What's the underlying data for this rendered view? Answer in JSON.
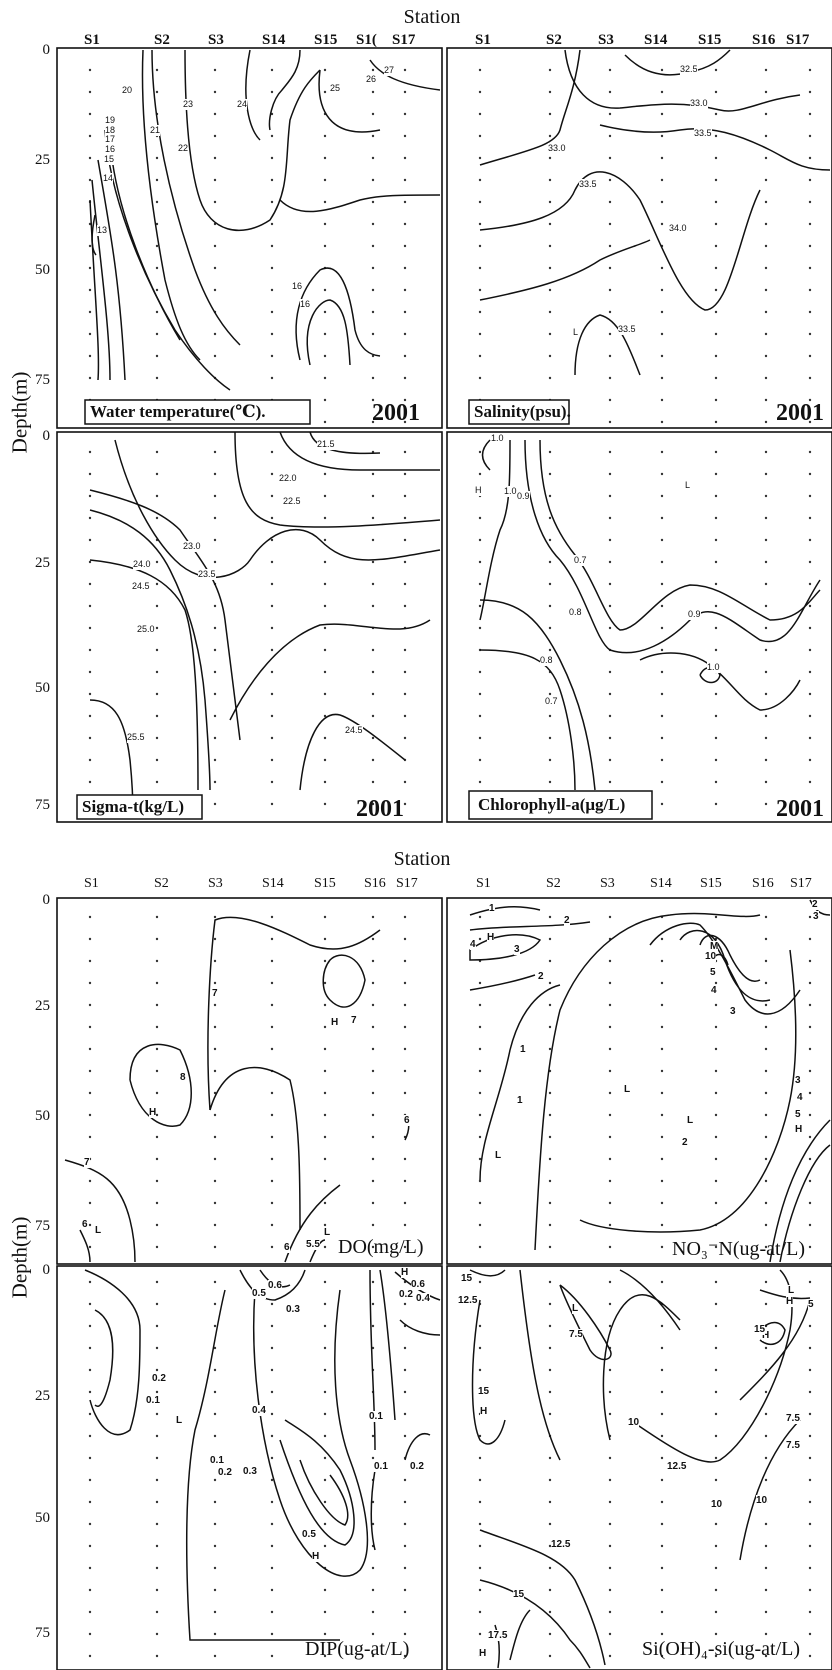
{
  "figure": {
    "top_group_title": "Station",
    "bottom_group_title": "Station",
    "ylabel": "Depth(m)",
    "top_yticks": [
      "0",
      "25",
      "50",
      "75"
    ],
    "top_yticks_lower": [
      "0",
      "25",
      "50",
      "75"
    ],
    "bottom_yticks": [
      "0",
      "25",
      "50",
      "75"
    ],
    "bottom_yticks_lower": [
      "0",
      "25",
      "50",
      "75"
    ],
    "top_stations": [
      "S1",
      "S2",
      "S3",
      "S14",
      "S15",
      "S1(",
      "S17"
    ],
    "top_stations_right": [
      "S1",
      "S2",
      "S3",
      "S14",
      "S15",
      "S16",
      "S17"
    ],
    "bottom_stations": [
      "S1",
      "S2",
      "S3",
      "S14",
      "S15",
      "S16",
      "S17"
    ],
    "bottom_stations_right": [
      "S1",
      "S2",
      "S3",
      "S14",
      "S15",
      "S16",
      "S17"
    ]
  },
  "chart_data": [
    {
      "type": "contour",
      "panel": "Water temperature",
      "title": "Water temperature(℃).",
      "year": "2001",
      "xlabel": "Station",
      "ylabel": "Depth(m)",
      "ylim": [
        0,
        80
      ],
      "contour_labels": [
        "20",
        "23",
        "24",
        "25",
        "26",
        "27",
        "19",
        "18",
        "17",
        "16",
        "15",
        "14",
        "13",
        "21",
        "22",
        "16",
        "16"
      ]
    },
    {
      "type": "contour",
      "panel": "Salinity",
      "title": "Salinity(psu).",
      "year": "2001",
      "xlabel": "Station",
      "ylabel": "Depth(m)",
      "ylim": [
        0,
        80
      ],
      "contour_labels": [
        "32.5",
        "33.0",
        "33.5",
        "33.0",
        "33.5",
        "34.0",
        "33.5",
        "L"
      ]
    },
    {
      "type": "contour",
      "panel": "Sigma-t",
      "title": "Sigma-t(kg/L)",
      "year": "2001",
      "xlabel": "Station",
      "ylabel": "Depth(m)",
      "ylim": [
        0,
        80
      ],
      "contour_labels": [
        "21.5",
        "22.0",
        "22.5",
        "23.0",
        "23.5",
        "24.0",
        "24.5",
        "25.0",
        "25.5",
        "24.5"
      ]
    },
    {
      "type": "contour",
      "panel": "Chlorophyll-a",
      "title": "Chlorophyll-a(μg/L)",
      "year": "2001",
      "xlabel": "Station",
      "ylabel": "Depth(m)",
      "ylim": [
        0,
        80
      ],
      "contour_labels": [
        "1.0",
        "1.0",
        "0.9",
        "0.7",
        "0.8",
        "0.8",
        "0.9",
        "1.0",
        "0.7",
        "H",
        "L"
      ]
    },
    {
      "type": "contour",
      "panel": "DO",
      "title": "DO(mg/L)",
      "xlabel": "Station",
      "ylabel": "Depth(m)",
      "ylim": [
        0,
        80
      ],
      "contour_labels": [
        "7",
        "7",
        "H",
        "8",
        "H",
        "7",
        "6",
        "6",
        "5.5",
        "L",
        "L",
        "6"
      ]
    },
    {
      "type": "contour",
      "panel": "NO3-N",
      "title": "NO₃⁻N(ug-at/L)",
      "xlabel": "Station",
      "ylabel": "Depth(m)",
      "ylim": [
        0,
        80
      ],
      "contour_labels": [
        "1",
        "2",
        "H",
        "4",
        "3",
        "2",
        "10",
        "M",
        "5",
        "4",
        "3",
        "1",
        "1",
        "L",
        "L",
        "L",
        "2",
        "3",
        "4",
        "5",
        "H",
        "2",
        "3"
      ]
    },
    {
      "type": "contour",
      "panel": "DIP",
      "title": "DIP(ug-at/L)",
      "xlabel": "Station",
      "ylabel": "Depth(m)",
      "ylim": [
        0,
        80
      ],
      "contour_labels": [
        "0.5",
        "0.6",
        "0.3",
        "0.2",
        "0.1",
        "L",
        "0.4",
        "0.5",
        "0.3",
        "0.2",
        "0.1",
        "H",
        "0.1",
        "0.1",
        "0.2",
        "H",
        "0.6",
        "0.4",
        "0.2"
      ]
    },
    {
      "type": "contour",
      "panel": "Si(OH)4-si",
      "title": "Si(OH)₄-si(ug-at/L)",
      "xlabel": "Station",
      "ylabel": "Depth(m)",
      "ylim": [
        0,
        80
      ],
      "contour_labels": [
        "15",
        "12.5",
        "H",
        "L",
        "7.5",
        "10",
        "H",
        "15",
        "12.5",
        "10",
        "12.5",
        "15",
        "H",
        "17.5",
        "15",
        "H",
        "7.5",
        "7.5",
        "10",
        "L",
        "5"
      ]
    }
  ],
  "colors": {
    "line": "#111111",
    "dot": "#222222",
    "background": "#ffffff"
  }
}
